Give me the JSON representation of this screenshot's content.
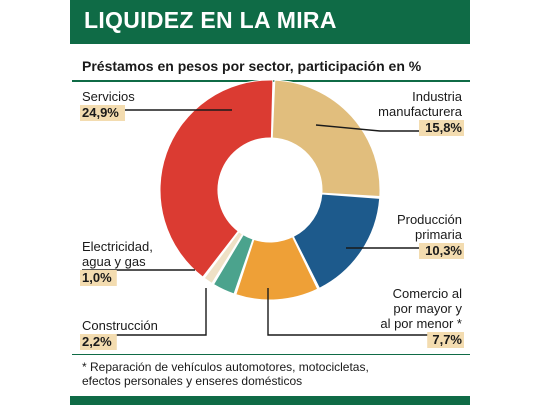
{
  "header": {
    "title": "LIQUIDEZ EN LA MIRA"
  },
  "chart_data": {
    "type": "pie",
    "title": "Préstamos en pesos por sector, participación en %",
    "slices": [
      {
        "lines": [
          "Industria",
          "manufacturera"
        ],
        "value_label": "15,8%",
        "value": 15.8,
        "color": "#e1be7d"
      },
      {
        "lines": [
          "Producción",
          "primaria"
        ],
        "value_label": "10,3%",
        "value": 10.3,
        "color": "#1d5a8c"
      },
      {
        "lines": [
          "Comercio al",
          "por mayor y",
          "al por menor *"
        ],
        "value_label": "7,7%",
        "value": 7.7,
        "color": "#eea037"
      },
      {
        "lines": [
          "Construcción"
        ],
        "value_label": "2,2%",
        "value": 2.2,
        "color": "#4ba38d"
      },
      {
        "lines": [
          "Electricidad,",
          "agua y gas"
        ],
        "value_label": "1,0%",
        "value": 1.0,
        "color": "#efe1c6"
      },
      {
        "lines": [
          "Servicios"
        ],
        "value_label": "24,9%",
        "value": 24.9,
        "color": "#db3b32"
      }
    ],
    "label_bg": "#f3dcb0",
    "inner_color": "#ffffff"
  },
  "footnote": {
    "line1": "* Reparación de vehículos automotores, motocicletas,",
    "line2": "efectos personales y enseres domésticos"
  }
}
